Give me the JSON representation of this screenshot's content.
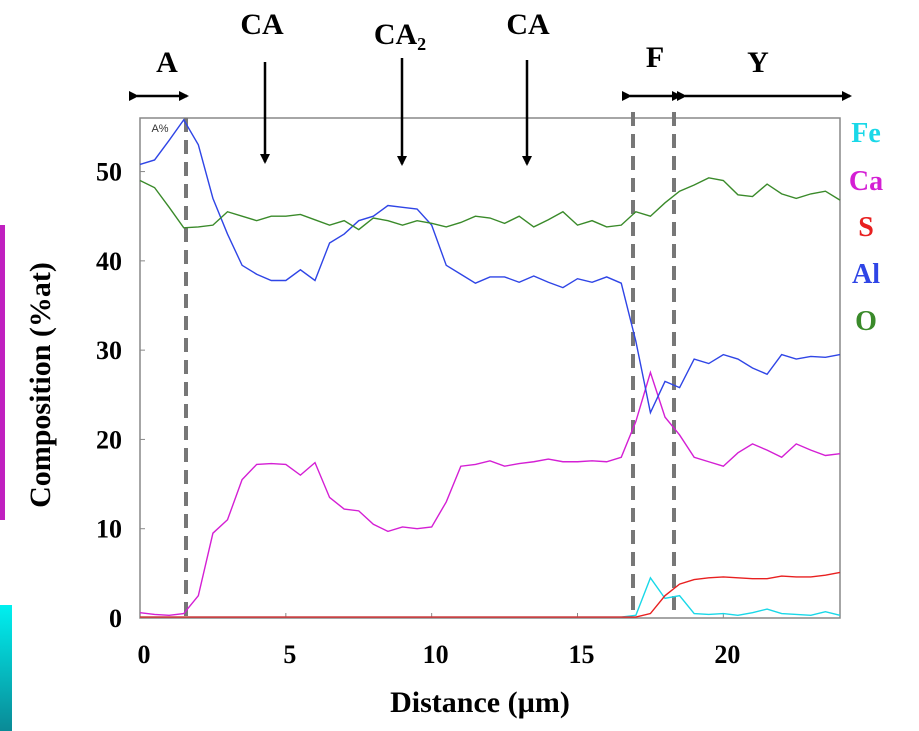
{
  "chart_data": {
    "type": "line",
    "xlabel": "Distance (µm)",
    "ylabel": "Composition (%at)",
    "annotations": [
      "A",
      "CA",
      "CA₂",
      "CA",
      "F",
      "Y",
      "A%"
    ],
    "xlim": [
      0,
      24
    ],
    "ylim": [
      0,
      56
    ],
    "xticks": [
      0,
      5,
      10,
      15,
      20
    ],
    "yticks": [
      0,
      10,
      20,
      30,
      40,
      50
    ],
    "x": [
      0,
      0.5,
      1,
      1.5,
      2,
      2.5,
      3,
      3.5,
      4,
      4.5,
      5,
      5.5,
      6,
      6.5,
      7,
      7.5,
      8,
      8.5,
      9,
      9.5,
      10,
      10.5,
      11,
      11.5,
      12,
      12.5,
      13,
      13.5,
      14,
      14.5,
      15,
      15.5,
      16,
      16.5,
      17,
      17.5,
      18,
      18.5,
      19,
      19.5,
      20,
      20.5,
      21,
      21.5,
      22,
      22.5,
      23,
      23.5,
      24
    ],
    "series": [
      {
        "name": "Fe",
        "color": "#19d8e8",
        "values": [
          0.1,
          0.1,
          0.1,
          0.1,
          0.1,
          0.1,
          0.1,
          0.1,
          0.1,
          0.1,
          0.1,
          0.1,
          0.1,
          0.1,
          0.1,
          0.1,
          0.1,
          0.1,
          0.1,
          0.1,
          0.1,
          0.1,
          0.1,
          0.1,
          0.1,
          0.1,
          0.1,
          0.1,
          0.1,
          0.1,
          0.1,
          0.1,
          0.1,
          0.1,
          0.3,
          4.5,
          2.2,
          2.5,
          0.5,
          0.4,
          0.5,
          0.3,
          0.6,
          1,
          0.5,
          0.4,
          0.3,
          0.7,
          0.3
        ]
      },
      {
        "name": "Ca",
        "color": "#d41fd4",
        "values": [
          0.6,
          0.4,
          0.3,
          0.5,
          2.5,
          9.5,
          11,
          15.5,
          17.2,
          17.3,
          17.2,
          16,
          17.4,
          13.5,
          12.2,
          12,
          10.5,
          9.7,
          10.2,
          10,
          10.2,
          13,
          17,
          17.2,
          17.6,
          17,
          17.3,
          17.5,
          17.8,
          17.5,
          17.5,
          17.6,
          17.5,
          18,
          22,
          27.5,
          22.5,
          20.5,
          18,
          17.5,
          17,
          18.5,
          19.5,
          18.8,
          18,
          19.5,
          18.8,
          18.2,
          18.4
        ]
      },
      {
        "name": "S",
        "color": "#e82020",
        "values": [
          0.1,
          0.1,
          0.1,
          0.1,
          0.1,
          0.1,
          0.1,
          0.1,
          0.1,
          0.1,
          0.1,
          0.1,
          0.1,
          0.1,
          0.1,
          0.1,
          0.1,
          0.1,
          0.1,
          0.1,
          0.1,
          0.1,
          0.1,
          0.1,
          0.1,
          0.1,
          0.1,
          0.1,
          0.1,
          0.1,
          0.1,
          0.1,
          0.1,
          0.1,
          0.1,
          0.5,
          2.5,
          3.8,
          4.3,
          4.5,
          4.6,
          4.5,
          4.4,
          4.4,
          4.7,
          4.6,
          4.6,
          4.8,
          5.1
        ]
      },
      {
        "name": "Al",
        "color": "#2f45e6",
        "values": [
          50.8,
          51.3,
          53.5,
          55.8,
          53,
          47,
          43,
          39.5,
          38.5,
          37.8,
          37.8,
          39,
          37.8,
          42,
          43,
          44.5,
          45,
          46.2,
          46,
          45.8,
          44,
          39.5,
          38.5,
          37.5,
          38.2,
          38.2,
          37.6,
          38.3,
          37.6,
          37,
          38,
          37.6,
          38.2,
          37.5,
          31,
          23,
          26.5,
          25.8,
          29,
          28.5,
          29.5,
          29,
          28,
          27.3,
          29.5,
          29,
          29.3,
          29.2,
          29.5
        ]
      },
      {
        "name": "O",
        "color": "#3a8a2a",
        "values": [
          49,
          48.2,
          46,
          43.7,
          43.8,
          44,
          45.5,
          45,
          44.5,
          45,
          45,
          45.2,
          44.6,
          44,
          44.5,
          43.5,
          44.8,
          44.5,
          44,
          44.5,
          44.2,
          43.8,
          44.3,
          45,
          44.8,
          44.2,
          45,
          43.8,
          44.6,
          45.5,
          44,
          44.5,
          43.8,
          44,
          45.5,
          45,
          46.5,
          47.8,
          48.5,
          49.3,
          49,
          47.4,
          47.2,
          48.6,
          47.5,
          47,
          47.5,
          47.8,
          46.8
        ]
      }
    ]
  }
}
